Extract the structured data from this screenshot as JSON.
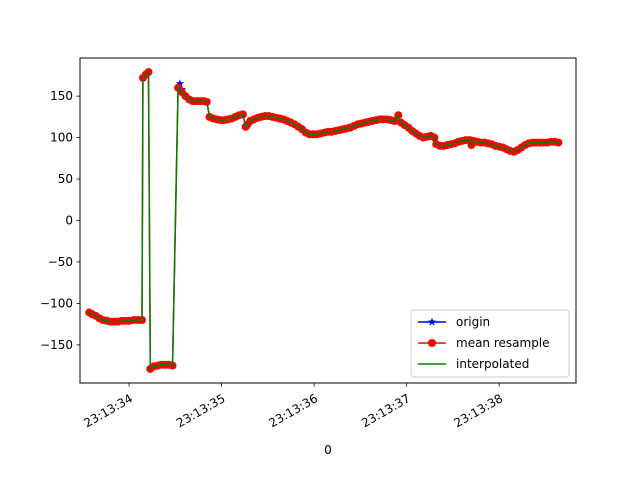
{
  "chart_data": {
    "type": "line",
    "title": "",
    "xlabel": "0",
    "ylabel": "",
    "grid": false,
    "legend_position": "lower-right",
    "x_ticks": [
      "23:13:34",
      "23:13:35",
      "23:13:36",
      "23:13:37",
      "23:13:38"
    ],
    "y_ticks": [
      150,
      100,
      50,
      0,
      -50,
      -100,
      -150
    ],
    "xlim": [
      33.47,
      38.83
    ],
    "ylim": [
      -196,
      196
    ],
    "series": [
      {
        "name": "origin",
        "color": "#0000ff",
        "marker": "star",
        "points": [
          [
            34.55,
            165
          ],
          [
            34.57,
            158
          ]
        ]
      },
      {
        "name": "mean resample",
        "color": "#ff0000",
        "marker": "circle",
        "points": [
          [
            33.57,
            -111
          ],
          [
            33.6,
            -113
          ],
          [
            33.64,
            -115
          ],
          [
            33.68,
            -118
          ],
          [
            33.72,
            -120
          ],
          [
            33.76,
            -121
          ],
          [
            33.8,
            -122
          ],
          [
            33.84,
            -122
          ],
          [
            33.88,
            -122
          ],
          [
            33.92,
            -121
          ],
          [
            33.96,
            -121
          ],
          [
            34.0,
            -121
          ],
          [
            34.05,
            -120
          ],
          [
            34.1,
            -120
          ],
          [
            34.14,
            -120
          ],
          [
            34.15,
            172
          ],
          [
            34.18,
            176
          ],
          [
            34.21,
            179
          ],
          [
            34.23,
            -179
          ],
          [
            34.27,
            -176
          ],
          [
            34.31,
            -175
          ],
          [
            34.35,
            -174
          ],
          [
            34.39,
            -174
          ],
          [
            34.43,
            -174
          ],
          [
            34.47,
            -175
          ],
          [
            34.53,
            160
          ],
          [
            34.57,
            155
          ],
          [
            34.61,
            150
          ],
          [
            34.65,
            146
          ],
          [
            34.69,
            144
          ],
          [
            34.73,
            144
          ],
          [
            34.77,
            144
          ],
          [
            34.81,
            144
          ],
          [
            34.84,
            143
          ],
          [
            34.87,
            125
          ],
          [
            34.91,
            123
          ],
          [
            34.95,
            122
          ],
          [
            34.99,
            121
          ],
          [
            35.03,
            121
          ],
          [
            35.07,
            122
          ],
          [
            35.11,
            123
          ],
          [
            35.15,
            125
          ],
          [
            35.19,
            127
          ],
          [
            35.23,
            128
          ],
          [
            35.26,
            113
          ],
          [
            35.28,
            116
          ],
          [
            35.31,
            120
          ],
          [
            35.35,
            122
          ],
          [
            35.39,
            124
          ],
          [
            35.43,
            125
          ],
          [
            35.47,
            126
          ],
          [
            35.51,
            126
          ],
          [
            35.55,
            125
          ],
          [
            35.59,
            124
          ],
          [
            35.63,
            123
          ],
          [
            35.67,
            122
          ],
          [
            35.71,
            120
          ],
          [
            35.75,
            118
          ],
          [
            35.79,
            116
          ],
          [
            35.83,
            113
          ],
          [
            35.87,
            110
          ],
          [
            35.91,
            106
          ],
          [
            35.95,
            104
          ],
          [
            35.99,
            104
          ],
          [
            36.03,
            104
          ],
          [
            36.07,
            105
          ],
          [
            36.11,
            106
          ],
          [
            36.15,
            107
          ],
          [
            36.19,
            107
          ],
          [
            36.23,
            108
          ],
          [
            36.27,
            109
          ],
          [
            36.31,
            110
          ],
          [
            36.35,
            111
          ],
          [
            36.39,
            112
          ],
          [
            36.43,
            114
          ],
          [
            36.47,
            116
          ],
          [
            36.51,
            117
          ],
          [
            36.55,
            118
          ],
          [
            36.59,
            119
          ],
          [
            36.63,
            120
          ],
          [
            36.67,
            121
          ],
          [
            36.71,
            122
          ],
          [
            36.75,
            122
          ],
          [
            36.79,
            122
          ],
          [
            36.83,
            121
          ],
          [
            36.87,
            120
          ],
          [
            36.91,
            127
          ],
          [
            36.94,
            118
          ],
          [
            36.98,
            115
          ],
          [
            37.02,
            112
          ],
          [
            37.06,
            108
          ],
          [
            37.1,
            105
          ],
          [
            37.14,
            102
          ],
          [
            37.18,
            100
          ],
          [
            37.22,
            101
          ],
          [
            37.26,
            102
          ],
          [
            37.3,
            100
          ],
          [
            37.32,
            92
          ],
          [
            37.36,
            90
          ],
          [
            37.4,
            90
          ],
          [
            37.44,
            91
          ],
          [
            37.48,
            92
          ],
          [
            37.52,
            93
          ],
          [
            37.56,
            95
          ],
          [
            37.6,
            96
          ],
          [
            37.64,
            97
          ],
          [
            37.68,
            97
          ],
          [
            37.7,
            91
          ],
          [
            37.72,
            96
          ],
          [
            37.76,
            95
          ],
          [
            37.8,
            94
          ],
          [
            37.84,
            94
          ],
          [
            37.88,
            93
          ],
          [
            37.92,
            92
          ],
          [
            37.96,
            90
          ],
          [
            38.0,
            89
          ],
          [
            38.04,
            88
          ],
          [
            38.08,
            86
          ],
          [
            38.12,
            84
          ],
          [
            38.16,
            83
          ],
          [
            38.2,
            85
          ],
          [
            38.24,
            88
          ],
          [
            38.28,
            91
          ],
          [
            38.32,
            93
          ],
          [
            38.36,
            94
          ],
          [
            38.4,
            94
          ],
          [
            38.44,
            94
          ],
          [
            38.48,
            94
          ],
          [
            38.52,
            94
          ],
          [
            38.56,
            95
          ],
          [
            38.6,
            95
          ],
          [
            38.64,
            94
          ]
        ]
      },
      {
        "name": "interpolated",
        "color": "#008000",
        "marker": "none",
        "points": [
          [
            33.57,
            -111
          ],
          [
            33.6,
            -113
          ],
          [
            33.64,
            -115
          ],
          [
            33.68,
            -118
          ],
          [
            33.72,
            -120
          ],
          [
            33.76,
            -121
          ],
          [
            33.8,
            -122
          ],
          [
            33.84,
            -122
          ],
          [
            33.88,
            -122
          ],
          [
            33.92,
            -121
          ],
          [
            33.96,
            -121
          ],
          [
            34.0,
            -121
          ],
          [
            34.05,
            -120
          ],
          [
            34.1,
            -120
          ],
          [
            34.14,
            -120
          ],
          [
            34.15,
            172
          ],
          [
            34.18,
            176
          ],
          [
            34.21,
            179
          ],
          [
            34.23,
            -179
          ],
          [
            34.27,
            -176
          ],
          [
            34.31,
            -175
          ],
          [
            34.35,
            -174
          ],
          [
            34.39,
            -174
          ],
          [
            34.43,
            -174
          ],
          [
            34.47,
            -175
          ],
          [
            34.53,
            160
          ],
          [
            34.57,
            155
          ],
          [
            34.61,
            150
          ],
          [
            34.65,
            146
          ],
          [
            34.69,
            144
          ],
          [
            34.73,
            144
          ],
          [
            34.77,
            144
          ],
          [
            34.81,
            144
          ],
          [
            34.84,
            143
          ],
          [
            34.87,
            125
          ],
          [
            34.91,
            123
          ],
          [
            34.95,
            122
          ],
          [
            34.99,
            121
          ],
          [
            35.03,
            121
          ],
          [
            35.07,
            122
          ],
          [
            35.11,
            123
          ],
          [
            35.15,
            125
          ],
          [
            35.19,
            127
          ],
          [
            35.23,
            128
          ],
          [
            35.26,
            113
          ],
          [
            35.28,
            116
          ],
          [
            35.31,
            120
          ],
          [
            35.35,
            122
          ],
          [
            35.39,
            124
          ],
          [
            35.43,
            125
          ],
          [
            35.47,
            126
          ],
          [
            35.51,
            126
          ],
          [
            35.55,
            125
          ],
          [
            35.59,
            124
          ],
          [
            35.63,
            123
          ],
          [
            35.67,
            122
          ],
          [
            35.71,
            120
          ],
          [
            35.75,
            118
          ],
          [
            35.79,
            116
          ],
          [
            35.83,
            113
          ],
          [
            35.87,
            110
          ],
          [
            35.91,
            106
          ],
          [
            35.95,
            104
          ],
          [
            35.99,
            104
          ],
          [
            36.03,
            104
          ],
          [
            36.07,
            105
          ],
          [
            36.11,
            106
          ],
          [
            36.15,
            107
          ],
          [
            36.19,
            107
          ],
          [
            36.23,
            108
          ],
          [
            36.27,
            109
          ],
          [
            36.31,
            110
          ],
          [
            36.35,
            111
          ],
          [
            36.39,
            112
          ],
          [
            36.43,
            114
          ],
          [
            36.47,
            116
          ],
          [
            36.51,
            117
          ],
          [
            36.55,
            118
          ],
          [
            36.59,
            119
          ],
          [
            36.63,
            120
          ],
          [
            36.67,
            121
          ],
          [
            36.71,
            122
          ],
          [
            36.75,
            122
          ],
          [
            36.79,
            122
          ],
          [
            36.83,
            121
          ],
          [
            36.87,
            120
          ],
          [
            36.91,
            127
          ],
          [
            36.94,
            118
          ],
          [
            36.98,
            115
          ],
          [
            37.02,
            112
          ],
          [
            37.06,
            108
          ],
          [
            37.1,
            105
          ],
          [
            37.14,
            102
          ],
          [
            37.18,
            100
          ],
          [
            37.22,
            101
          ],
          [
            37.26,
            102
          ],
          [
            37.3,
            100
          ],
          [
            37.32,
            92
          ],
          [
            37.36,
            90
          ],
          [
            37.4,
            90
          ],
          [
            37.44,
            91
          ],
          [
            37.48,
            92
          ],
          [
            37.52,
            93
          ],
          [
            37.56,
            95
          ],
          [
            37.6,
            96
          ],
          [
            37.64,
            97
          ],
          [
            37.68,
            97
          ],
          [
            37.7,
            91
          ],
          [
            37.72,
            96
          ],
          [
            37.76,
            95
          ],
          [
            37.8,
            94
          ],
          [
            37.84,
            94
          ],
          [
            37.88,
            93
          ],
          [
            37.92,
            92
          ],
          [
            37.96,
            90
          ],
          [
            38.0,
            89
          ],
          [
            38.04,
            88
          ],
          [
            38.08,
            86
          ],
          [
            38.12,
            84
          ],
          [
            38.16,
            83
          ],
          [
            38.2,
            85
          ],
          [
            38.24,
            88
          ],
          [
            38.28,
            91
          ],
          [
            38.32,
            93
          ],
          [
            38.36,
            94
          ],
          [
            38.4,
            94
          ],
          [
            38.44,
            94
          ],
          [
            38.48,
            94
          ],
          [
            38.52,
            94
          ],
          [
            38.56,
            95
          ],
          [
            38.6,
            95
          ],
          [
            38.64,
            94
          ]
        ]
      }
    ]
  }
}
